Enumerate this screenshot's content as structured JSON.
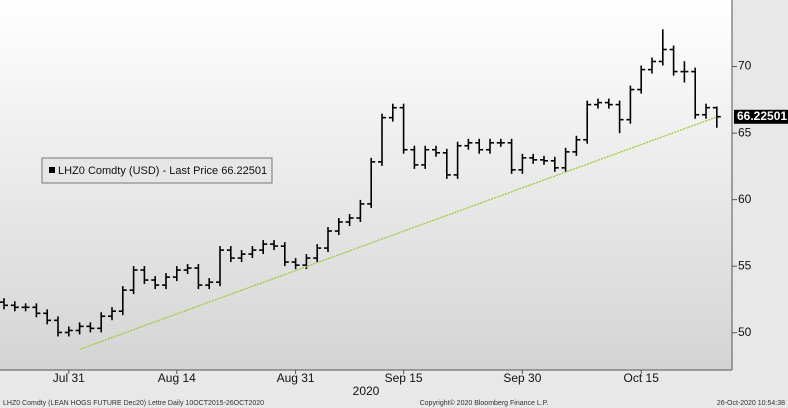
{
  "chart_data": {
    "type": "ohlc",
    "year_label": "2020",
    "legend_text": "LHZ0 Comdty (USD) - Last Price 66.22501",
    "last_price": 66.22501,
    "footer_left": "LHZ0 Comdty (LEAN HOGS FUTURE  Dec20) Lettre  Daily 10OCT2015-26OCT2020",
    "footer_center": "Copyright© 2020 Bloomberg Finance L.P.",
    "footer_right": "26-Oct-2020 10:54:38",
    "categories": [
      null,
      null,
      null,
      null,
      null,
      null,
      "Jul 31",
      null,
      null,
      null,
      null,
      null,
      null,
      null,
      null,
      null,
      "Aug 14",
      null,
      null,
      null,
      null,
      null,
      null,
      null,
      null,
      null,
      null,
      "Aug 31",
      null,
      null,
      null,
      null,
      null,
      null,
      null,
      null,
      null,
      "Sep 15",
      null,
      null,
      null,
      null,
      null,
      null,
      null,
      null,
      null,
      null,
      "Sep 30",
      null,
      null,
      null,
      null,
      null,
      null,
      null,
      null,
      null,
      null,
      "Oct 15",
      null,
      null,
      null,
      null,
      null,
      null,
      null
    ],
    "ylim": [
      47.2,
      75
    ],
    "yticks": [
      50,
      55,
      60,
      65,
      70
    ],
    "series": [
      {
        "name": "LHZ0 Comdty (USD)",
        "color": "#000000",
        "open": [
          52.3,
          52.06,
          51.91,
          51.91,
          51.46,
          50.93,
          50.02,
          50.17,
          50.48,
          50.33,
          51.24,
          51.62,
          53.2,
          54.71,
          53.96,
          53.58,
          54.18,
          54.71,
          54.86,
          53.58,
          53.8,
          56.21,
          55.61,
          55.91,
          56.21,
          56.66,
          56.51,
          55.31,
          55.08,
          55.61,
          56.36,
          57.64,
          58.32,
          58.62,
          59.68,
          62.84,
          66.16,
          66.91,
          63.75,
          62.61,
          63.75,
          63.52,
          61.86,
          64.05,
          64.27,
          63.75,
          64.27,
          64.27,
          62.24,
          63.14,
          62.99,
          62.92,
          62.39,
          63.59,
          64.5,
          67.14,
          67.29,
          67.14,
          66.01,
          68.27,
          69.77,
          70.38,
          71.28,
          69.62,
          69.62,
          66.38,
          66.91
        ],
        "high": [
          52.6,
          52.36,
          52.21,
          52.21,
          51.76,
          51.23,
          50.47,
          50.78,
          50.78,
          51.54,
          51.92,
          53.5,
          55.01,
          55.01,
          54.26,
          54.48,
          55.01,
          55.16,
          55.16,
          54.1,
          56.51,
          56.51,
          56.21,
          56.51,
          56.96,
          56.96,
          56.81,
          55.61,
          55.91,
          56.66,
          57.94,
          58.62,
          58.92,
          59.98,
          63.14,
          66.46,
          67.21,
          67.21,
          64.05,
          64.05,
          64.05,
          63.82,
          64.35,
          64.57,
          64.57,
          64.57,
          64.57,
          64.57,
          63.44,
          63.44,
          63.29,
          63.22,
          63.89,
          64.8,
          67.44,
          67.59,
          67.59,
          67.44,
          68.57,
          70.07,
          70.68,
          72.8,
          71.58,
          70.4,
          69.92,
          67.21,
          67.0
        ],
        "low": [
          51.76,
          51.61,
          51.61,
          51.16,
          50.63,
          49.72,
          49.72,
          49.87,
          50.03,
          50.03,
          50.94,
          51.32,
          52.9,
          53.66,
          53.28,
          53.28,
          53.88,
          54.41,
          53.28,
          53.28,
          53.5,
          55.31,
          55.31,
          55.61,
          55.91,
          56.21,
          55.01,
          54.78,
          54.78,
          55.31,
          56.06,
          57.34,
          58.02,
          58.32,
          59.38,
          62.54,
          65.86,
          63.45,
          62.31,
          62.31,
          63.22,
          61.56,
          61.56,
          63.75,
          63.45,
          63.45,
          63.97,
          61.94,
          61.94,
          62.69,
          62.62,
          62.09,
          62.09,
          63.29,
          64.2,
          66.84,
          66.84,
          65.0,
          65.71,
          67.97,
          69.47,
          70.08,
          69.32,
          68.8,
          66.08,
          66.08,
          65.4
        ],
        "close": [
          52.06,
          51.91,
          51.91,
          51.46,
          50.93,
          50.02,
          50.17,
          50.48,
          50.33,
          51.24,
          51.62,
          53.2,
          54.71,
          53.96,
          53.58,
          54.18,
          54.71,
          54.86,
          53.58,
          53.8,
          56.21,
          55.61,
          55.91,
          56.21,
          56.66,
          56.51,
          55.31,
          55.08,
          55.61,
          56.36,
          57.64,
          58.32,
          58.62,
          59.68,
          62.84,
          66.16,
          66.91,
          63.75,
          62.61,
          63.75,
          63.52,
          61.86,
          64.05,
          64.27,
          63.75,
          64.27,
          64.27,
          62.24,
          63.14,
          62.99,
          62.92,
          62.39,
          63.59,
          64.5,
          67.14,
          67.29,
          67.14,
          66.01,
          68.27,
          69.77,
          70.38,
          71.28,
          69.62,
          69.62,
          66.38,
          66.91,
          66.23
        ]
      },
      {
        "type": "line",
        "color": "#9acd32",
        "values": [
          null,
          null,
          null,
          null,
          null,
          null,
          null,
          48.75,
          49.05,
          49.34,
          49.64,
          49.93,
          50.23,
          50.53,
          50.82,
          51.12,
          51.41,
          51.71,
          52.01,
          52.3,
          52.6,
          52.89,
          53.19,
          53.49,
          53.78,
          54.08,
          54.37,
          54.67,
          54.97,
          55.26,
          55.56,
          55.85,
          56.15,
          56.45,
          56.74,
          57.04,
          57.33,
          57.63,
          57.93,
          58.22,
          58.52,
          58.81,
          59.11,
          59.41,
          59.7,
          60.0,
          60.29,
          60.59,
          60.89,
          61.18,
          61.48,
          61.77,
          62.07,
          62.37,
          62.66,
          62.96,
          63.25,
          63.55,
          63.85,
          64.14,
          64.44,
          64.73,
          65.03,
          65.33,
          65.62,
          65.92,
          66.21
        ]
      }
    ]
  }
}
